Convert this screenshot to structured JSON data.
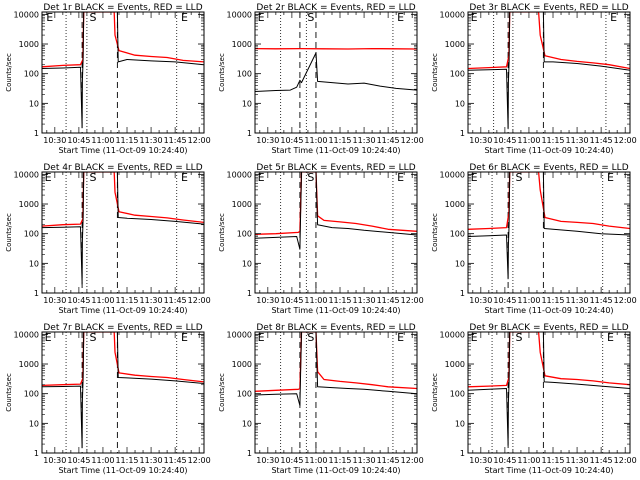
{
  "chart_data": [
    {
      "type": "line",
      "title": "Det 1r BLACK = Events, RED = LLD",
      "xlabel": "Start Time (11-Oct-09 10:24:40)",
      "ylabel": "Counts/sec",
      "yscale": "log",
      "ylim": [
        1,
        12000
      ],
      "xlim": [
        "10:22",
        "12:03"
      ],
      "xticks": [
        "10:30",
        "10:45",
        "11:00",
        "11:15",
        "11:30",
        "11:45",
        "12:00"
      ],
      "yticks": [
        "1",
        "10",
        "100",
        "1000",
        "10000"
      ],
      "markers": [
        {
          "label": "E",
          "x": "10:24"
        },
        {
          "label": "S",
          "x": "10:51"
        },
        {
          "label": "E",
          "x": "11:48"
        }
      ],
      "dotted_lines": [
        "10:37",
        "10:50",
        "11:46"
      ],
      "dashed_lines": [
        "10:47",
        "11:09"
      ],
      "series": [
        {
          "color": "#ff0000",
          "x": [
            "10:22",
            "10:35",
            "10:46",
            "10:47.5",
            "10:48",
            "11:07",
            "11:07.5",
            "11:10",
            "11:20",
            "11:30",
            "11:40",
            "11:50",
            "12:03"
          ],
          "y": [
            170,
            190,
            200,
            300,
            12000,
            12000,
            2000,
            600,
            420,
            380,
            350,
            280,
            250
          ]
        },
        {
          "color": "#000000",
          "x": [
            "10:22",
            "10:35",
            "10:46",
            "10:47",
            "10:47.2",
            "10:47.6",
            "10:48",
            "11:09",
            "11:09.5",
            "11:15",
            "11:30",
            "11:45",
            "12:03"
          ],
          "y": [
            150,
            155,
            165,
            1.5,
            60,
            300,
            12000,
            12000,
            250,
            300,
            270,
            250,
            200
          ]
        }
      ]
    },
    {
      "type": "line",
      "title": "Det 2r BLACK = Events, RED = LLD",
      "xlabel": "Start Time (11-Oct-09 10:24:40)",
      "ylabel": "Counts/sec",
      "yscale": "log",
      "ylim": [
        1,
        12000
      ],
      "xlim": [
        "10:22",
        "12:03"
      ],
      "xticks": [
        "10:30",
        "10:45",
        "11:00",
        "11:15",
        "11:30",
        "11:45",
        "12:00"
      ],
      "yticks": [
        "1",
        "10",
        "100",
        "1000",
        "10000"
      ],
      "markers": [
        {
          "label": "E",
          "x": "10:23"
        },
        {
          "label": "S",
          "x": "10:54"
        },
        {
          "label": "E",
          "x": "11:50"
        }
      ],
      "dotted_lines": [
        "10:38",
        "10:54",
        "11:48"
      ],
      "dashed_lines": [
        "10:50",
        "11:00"
      ],
      "series": [
        {
          "color": "#ff0000",
          "x": [
            "10:22",
            "10:35",
            "10:50",
            "11:05",
            "11:20",
            "11:35",
            "11:50",
            "12:03"
          ],
          "y": [
            700,
            690,
            700,
            690,
            680,
            700,
            690,
            680
          ]
        },
        {
          "color": "#000000",
          "x": [
            "10:22",
            "10:35",
            "10:44",
            "10:48",
            "10:50",
            "10:51",
            "11:00",
            "11:01",
            "11:10",
            "11:20",
            "11:30",
            "11:40",
            "11:50",
            "12:03"
          ],
          "y": [
            25,
            27,
            28,
            35,
            60,
            50,
            500,
            55,
            50,
            45,
            48,
            38,
            32,
            28
          ]
        }
      ]
    },
    {
      "type": "line",
      "title": "Det 3r BLACK = Events, RED = LLD",
      "xlabel": "Start Time (11-Oct-09 10:24:40)",
      "ylabel": "Counts/sec",
      "yscale": "log",
      "ylim": [
        1,
        12000
      ],
      "xlim": [
        "10:22",
        "12:03"
      ],
      "xticks": [
        "10:30",
        "10:45",
        "11:00",
        "11:15",
        "11:30",
        "11:45",
        "12:00"
      ],
      "yticks": [
        "1",
        "10",
        "100",
        "1000",
        "10000"
      ],
      "markers": [
        {
          "label": "E",
          "x": "10:23"
        },
        {
          "label": "E",
          "x": "11:50"
        }
      ],
      "dotted_lines": [
        "10:38",
        "10:50",
        "11:48"
      ],
      "dashed_lines": [
        "10:47",
        "11:09"
      ],
      "series": [
        {
          "color": "#ff0000",
          "x": [
            "10:22",
            "10:35",
            "10:46",
            "10:47.5",
            "10:48",
            "11:06",
            "11:07",
            "11:10",
            "11:20",
            "11:30",
            "11:40",
            "11:50",
            "12:03"
          ],
          "y": [
            150,
            160,
            170,
            400,
            12000,
            12000,
            2000,
            400,
            300,
            260,
            230,
            200,
            150
          ]
        },
        {
          "color": "#000000",
          "x": [
            "10:22",
            "10:35",
            "10:46",
            "10:47",
            "10:47.2",
            "10:47.6",
            "10:48",
            "11:09",
            "11:09.5",
            "11:15",
            "11:30",
            "11:45",
            "12:03"
          ],
          "y": [
            130,
            135,
            140,
            1.4,
            50,
            250,
            12000,
            12000,
            250,
            250,
            220,
            180,
            130
          ]
        }
      ]
    },
    {
      "type": "line",
      "title": "Det 4r BLACK = Events, RED = LLD",
      "xlabel": "Start Time (11-Oct-09 10:24:40)",
      "ylabel": "Counts/sec",
      "yscale": "log",
      "ylim": [
        1,
        12000
      ],
      "xlim": [
        "10:22",
        "12:03"
      ],
      "xticks": [
        "10:30",
        "10:45",
        "11:00",
        "11:15",
        "11:30",
        "11:45",
        "12:00"
      ],
      "yticks": [
        "1",
        "10",
        "100",
        "1000",
        "10000"
      ],
      "markers": [
        {
          "label": "E",
          "x": "10:23"
        },
        {
          "label": "S",
          "x": "10:51"
        },
        {
          "label": "E",
          "x": "11:48"
        }
      ],
      "dotted_lines": [
        "10:37",
        "10:50",
        "11:46"
      ],
      "dashed_lines": [
        "10:47",
        "11:09"
      ],
      "series": [
        {
          "color": "#ff0000",
          "x": [
            "10:22",
            "10:35",
            "10:46",
            "10:47.5",
            "10:48",
            "11:07",
            "11:07.5",
            "11:10",
            "11:20",
            "11:30",
            "11:40",
            "11:50",
            "12:03"
          ],
          "y": [
            180,
            200,
            210,
            320,
            12000,
            12000,
            2500,
            550,
            420,
            380,
            340,
            290,
            240
          ]
        },
        {
          "color": "#000000",
          "x": [
            "10:22",
            "10:35",
            "10:46",
            "10:47",
            "10:47.2",
            "10:47.6",
            "10:48",
            "11:09",
            "11:09.5",
            "11:15",
            "11:30",
            "11:45",
            "12:03"
          ],
          "y": [
            160,
            165,
            170,
            2,
            60,
            300,
            12000,
            12000,
            350,
            330,
            300,
            260,
            210
          ]
        }
      ]
    },
    {
      "type": "line",
      "title": "Det 5r BLACK = Events, RED = LLD",
      "xlabel": "Start Time (11-Oct-09 10:24:40)",
      "ylabel": "Counts/sec",
      "yscale": "log",
      "ylim": [
        1,
        12000
      ],
      "xlim": [
        "10:22",
        "12:03"
      ],
      "xticks": [
        "10:30",
        "10:45",
        "11:00",
        "11:15",
        "11:30",
        "11:45",
        "12:00"
      ],
      "yticks": [
        "1",
        "10",
        "100",
        "1000",
        "10000"
      ],
      "markers": [
        {
          "label": "E",
          "x": "10:23"
        },
        {
          "label": "S",
          "x": "10:54"
        },
        {
          "label": "E",
          "x": "11:50"
        }
      ],
      "dotted_lines": [
        "10:38",
        "10:54",
        "11:48"
      ],
      "dashed_lines": [
        "10:50",
        "11:00"
      ],
      "series": [
        {
          "color": "#ff0000",
          "x": [
            "10:22",
            "10:35",
            "10:49",
            "10:50",
            "10:51",
            "11:00",
            "11:01",
            "11:05",
            "11:15",
            "11:25",
            "11:35",
            "11:45",
            "12:03"
          ],
          "y": [
            95,
            100,
            110,
            120,
            12000,
            12000,
            400,
            280,
            250,
            220,
            180,
            140,
            120
          ]
        },
        {
          "color": "#000000",
          "x": [
            "10:22",
            "10:35",
            "10:48",
            "10:50",
            "10:51",
            "11:00",
            "11:01",
            "11:10",
            "11:20",
            "11:30",
            "11:45",
            "12:03"
          ],
          "y": [
            70,
            75,
            80,
            30,
            12000,
            12000,
            200,
            160,
            150,
            130,
            110,
            90
          ]
        }
      ]
    },
    {
      "type": "line",
      "title": "Det 6r BLACK = Events, RED = LLD",
      "xlabel": "Start Time (11-Oct-09 10:24:40)",
      "ylabel": "Counts/sec",
      "yscale": "log",
      "ylim": [
        1,
        12000
      ],
      "xlim": [
        "10:22",
        "12:03"
      ],
      "xticks": [
        "10:30",
        "10:45",
        "11:00",
        "11:15",
        "11:30",
        "11:45",
        "12:00"
      ],
      "yticks": [
        "1",
        "10",
        "100",
        "1000",
        "10000"
      ],
      "markers": [
        {
          "label": "E",
          "x": "10:23"
        },
        {
          "label": "S",
          "x": "10:51"
        },
        {
          "label": "E",
          "x": "11:48"
        }
      ],
      "dotted_lines": [
        "10:37",
        "10:50",
        "11:46"
      ],
      "dashed_lines": [
        "10:47",
        "11:09"
      ],
      "series": [
        {
          "color": "#ff0000",
          "x": [
            "10:22",
            "10:35",
            "10:46",
            "10:47.5",
            "10:48",
            "11:06",
            "11:07",
            "11:10",
            "11:20",
            "11:30",
            "11:40",
            "11:50",
            "12:03"
          ],
          "y": [
            140,
            150,
            160,
            500,
            12000,
            12000,
            3000,
            350,
            260,
            240,
            220,
            180,
            150
          ]
        },
        {
          "color": "#000000",
          "x": [
            "10:22",
            "10:35",
            "10:46",
            "10:47",
            "10:47.2",
            "10:47.6",
            "10:48",
            "11:09",
            "11:09.5",
            "11:15",
            "11:30",
            "11:45",
            "12:03"
          ],
          "y": [
            80,
            85,
            90,
            3,
            40,
            200,
            12000,
            12000,
            150,
            140,
            120,
            100,
            90
          ]
        }
      ]
    },
    {
      "type": "line",
      "title": "Det 7r BLACK = Events, RED = LLD",
      "xlabel": "Start Time (11-Oct-09 10:24:40)",
      "ylabel": "Counts/sec",
      "yscale": "log",
      "ylim": [
        1,
        12000
      ],
      "xlim": [
        "10:22",
        "12:03"
      ],
      "xticks": [
        "10:30",
        "10:45",
        "11:00",
        "11:15",
        "11:30",
        "11:45",
        "12:00"
      ],
      "yticks": [
        "1",
        "10",
        "100",
        "1000",
        "10000"
      ],
      "markers": [
        {
          "label": "E",
          "x": "10:23"
        },
        {
          "label": "S",
          "x": "10:51"
        },
        {
          "label": "E",
          "x": "11:48"
        }
      ],
      "dotted_lines": [
        "10:37",
        "10:50",
        "11:46"
      ],
      "dashed_lines": [
        "10:47",
        "11:09"
      ],
      "series": [
        {
          "color": "#ff0000",
          "x": [
            "10:22",
            "10:35",
            "10:46",
            "10:47.5",
            "10:48",
            "11:07",
            "11:07.5",
            "11:10",
            "11:20",
            "11:30",
            "11:40",
            "11:50",
            "12:03"
          ],
          "y": [
            190,
            200,
            210,
            330,
            12000,
            12000,
            2500,
            500,
            420,
            380,
            350,
            300,
            250
          ]
        },
        {
          "color": "#000000",
          "x": [
            "10:22",
            "10:35",
            "10:46",
            "10:47",
            "10:47.2",
            "10:47.6",
            "10:48",
            "11:09",
            "11:09.5",
            "11:15",
            "11:30",
            "11:45",
            "12:03"
          ],
          "y": [
            170,
            175,
            180,
            1.5,
            60,
            300,
            12000,
            12000,
            350,
            340,
            310,
            270,
            220
          ]
        }
      ]
    },
    {
      "type": "line",
      "title": "Det 8r BLACK = Events, RED = LLD",
      "xlabel": "Start Time (11-Oct-09 10:24:40)",
      "ylabel": "Counts/sec",
      "yscale": "log",
      "ylim": [
        1,
        12000
      ],
      "xlim": [
        "10:22",
        "12:03"
      ],
      "xticks": [
        "10:30",
        "10:45",
        "11:00",
        "11:15",
        "11:30",
        "11:45",
        "12:00"
      ],
      "yticks": [
        "1",
        "10",
        "100",
        "1000",
        "10000"
      ],
      "markers": [
        {
          "label": "E",
          "x": "10:23"
        },
        {
          "label": "S",
          "x": "10:54"
        },
        {
          "label": "E",
          "x": "11:50"
        }
      ],
      "dotted_lines": [
        "10:38",
        "10:54",
        "11:48"
      ],
      "dashed_lines": [
        "10:50",
        "11:00"
      ],
      "series": [
        {
          "color": "#ff0000",
          "x": [
            "10:22",
            "10:35",
            "10:49",
            "10:50",
            "10:51",
            "11:00",
            "11:01",
            "11:05",
            "11:15",
            "11:25",
            "11:35",
            "11:45",
            "12:03"
          ],
          "y": [
            120,
            130,
            140,
            150,
            12000,
            12000,
            550,
            300,
            260,
            230,
            200,
            170,
            150
          ]
        },
        {
          "color": "#000000",
          "x": [
            "10:22",
            "10:35",
            "10:48",
            "10:50",
            "10:51",
            "11:00",
            "11:01",
            "11:10",
            "11:20",
            "11:30",
            "11:45",
            "12:03"
          ],
          "y": [
            90,
            95,
            100,
            40,
            12000,
            12000,
            170,
            160,
            150,
            140,
            120,
            100
          ]
        }
      ]
    },
    {
      "type": "line",
      "title": "Det 9r BLACK = Events, RED = LLD",
      "xlabel": "Start Time (11-Oct-09 10:24:40)",
      "ylabel": "Counts/sec",
      "yscale": "log",
      "ylim": [
        1,
        12000
      ],
      "xlim": [
        "10:22",
        "12:03"
      ],
      "xticks": [
        "10:30",
        "10:45",
        "11:00",
        "11:15",
        "11:30",
        "11:45",
        "12:00"
      ],
      "yticks": [
        "1",
        "10",
        "100",
        "1000",
        "10000"
      ],
      "markers": [
        {
          "label": "E",
          "x": "10:23"
        },
        {
          "label": "S",
          "x": "10:51"
        },
        {
          "label": "E",
          "x": "11:48"
        }
      ],
      "dotted_lines": [
        "10:37",
        "10:50",
        "11:46"
      ],
      "dashed_lines": [
        "10:47",
        "11:09"
      ],
      "series": [
        {
          "color": "#ff0000",
          "x": [
            "10:22",
            "10:35",
            "10:46",
            "10:47.5",
            "10:48",
            "11:06",
            "11:07",
            "11:10",
            "11:20",
            "11:30",
            "11:40",
            "11:50",
            "12:03"
          ],
          "y": [
            170,
            180,
            190,
            350,
            12000,
            12000,
            2500,
            400,
            320,
            300,
            270,
            230,
            200
          ]
        },
        {
          "color": "#000000",
          "x": [
            "10:22",
            "10:35",
            "10:46",
            "10:47",
            "10:47.2",
            "10:47.6",
            "10:48",
            "11:09",
            "11:09.5",
            "11:15",
            "11:30",
            "11:45",
            "12:03"
          ],
          "y": [
            130,
            140,
            150,
            1.8,
            50,
            250,
            12000,
            12000,
            250,
            240,
            210,
            180,
            150
          ]
        }
      ]
    }
  ]
}
